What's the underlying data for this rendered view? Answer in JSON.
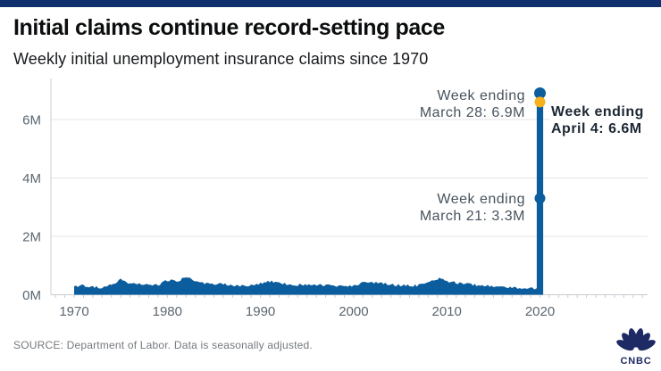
{
  "page": {
    "title": "Initial claims continue record-setting pace",
    "subtitle": "Weekly initial unemployment insurance claims since 1970",
    "source_note": "SOURCE: Department of Labor. Data is seasonally adjusted.",
    "brand": "CNBC"
  },
  "colors": {
    "background": "#ffffff",
    "topbar": "#10316e",
    "series_blue": "#0b5d9d",
    "marker_yellow": "#f6b11b",
    "grid": "#e4e6e8",
    "axis": "#c8ccd0",
    "tick_label": "#5b6770",
    "annotation_gray": "#47535e",
    "annotation_dark": "#1c2733",
    "title_text": "#0b0d0e",
    "subtitle_text": "#17191c",
    "source_text": "#74797e",
    "logo_navy": "#1e2a63"
  },
  "annotations": {
    "mar28": {
      "line1": "Week ending",
      "line2": "March 28: 6.9M"
    },
    "apr4": {
      "line1": "Week ending",
      "line2": "April 4: 6.6M"
    },
    "mar21": {
      "line1": "Week ending",
      "line2": "March 21: 3.3M"
    }
  },
  "chart_data": {
    "type": "area",
    "title": "Initial claims continue record-setting pace",
    "subtitle": "Weekly initial unemployment insurance claims since 1970",
    "units": "millions of weekly initial unemployment insurance claims, seasonally adjusted",
    "xlabel": "",
    "ylabel": "",
    "grid": "horizontal",
    "legend": "none",
    "ylim": [
      0,
      7.2
    ],
    "xlim": [
      1968,
      2031
    ],
    "xticks": [
      1970,
      1980,
      1990,
      2000,
      2010,
      2020
    ],
    "yticks": [
      {
        "value": 0,
        "label": "0M"
      },
      {
        "value": 2,
        "label": "2M"
      },
      {
        "value": 4,
        "label": "4M"
      },
      {
        "value": 6,
        "label": "6M"
      }
    ],
    "years": [
      1970,
      1971,
      1972,
      1973,
      1974,
      1975,
      1976,
      1977,
      1978,
      1979,
      1980,
      1981,
      1982,
      1983,
      1984,
      1985,
      1986,
      1987,
      1988,
      1989,
      1990,
      1991,
      1992,
      1993,
      1994,
      1995,
      1996,
      1997,
      1998,
      1999,
      2000,
      2001,
      2002,
      2003,
      2004,
      2005,
      2006,
      2007,
      2008,
      2009,
      2010,
      2011,
      2012,
      2013,
      2014,
      2015,
      2016,
      2017,
      2018,
      2019,
      2020
    ],
    "yearly_avg_millions": [
      0.3,
      0.31,
      0.27,
      0.25,
      0.33,
      0.5,
      0.39,
      0.37,
      0.33,
      0.34,
      0.49,
      0.44,
      0.58,
      0.47,
      0.37,
      0.39,
      0.37,
      0.32,
      0.31,
      0.33,
      0.38,
      0.45,
      0.41,
      0.36,
      0.34,
      0.36,
      0.35,
      0.32,
      0.31,
      0.3,
      0.3,
      0.41,
      0.4,
      0.4,
      0.34,
      0.33,
      0.31,
      0.32,
      0.43,
      0.57,
      0.46,
      0.41,
      0.37,
      0.34,
      0.31,
      0.28,
      0.26,
      0.24,
      0.22,
      0.22,
      0.21
    ],
    "final_weeks_2020": [
      {
        "week_ending": "March 21",
        "value_millions": 3.3,
        "marker": "blue"
      },
      {
        "week_ending": "March 28",
        "value_millions": 6.9,
        "marker": "blue"
      },
      {
        "week_ending": "April 4",
        "value_millions": 6.6,
        "marker": "yellow"
      }
    ]
  }
}
